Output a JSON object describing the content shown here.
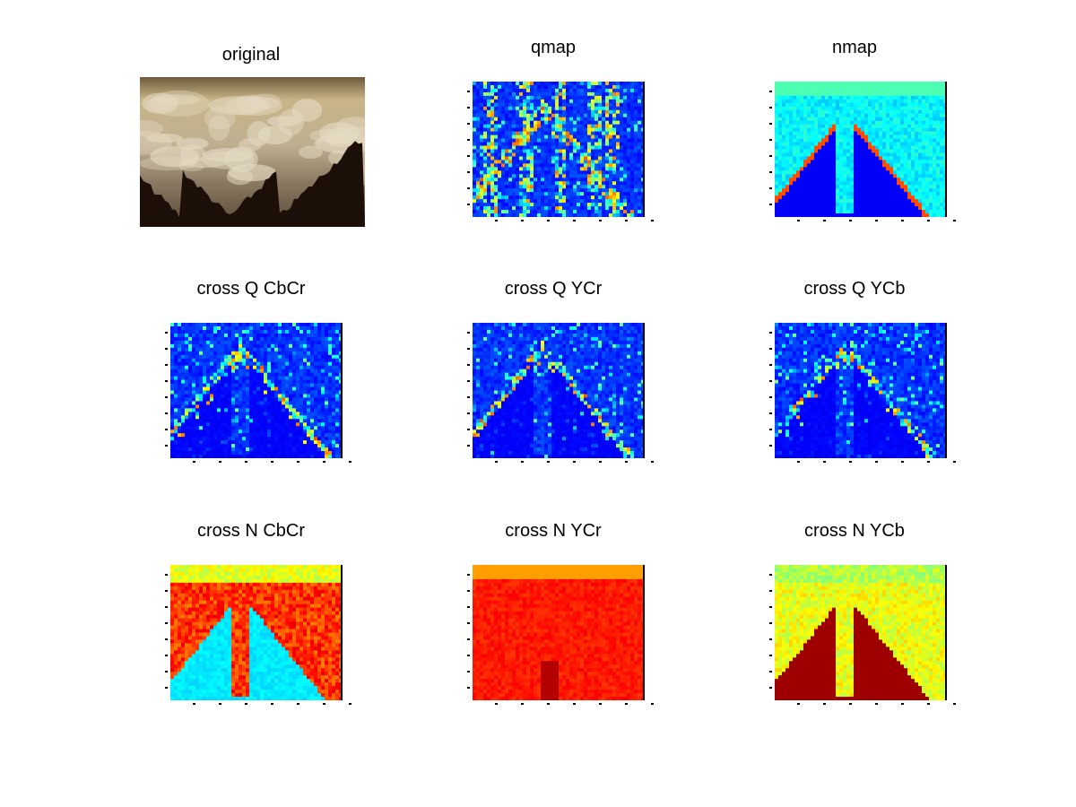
{
  "figure": {
    "panels": [
      {
        "title": "original",
        "kind": "photo"
      },
      {
        "title": "qmap",
        "kind": "sparse-jet"
      },
      {
        "title": "nmap",
        "kind": "smooth-jet-blue"
      },
      {
        "title": "cross Q CbCr",
        "kind": "sparse-jet"
      },
      {
        "title": "cross Q YCr",
        "kind": "sparse-jet"
      },
      {
        "title": "cross Q YCb",
        "kind": "sparse-jet"
      },
      {
        "title": "cross N CbCr",
        "kind": "smooth-jet-red-top"
      },
      {
        "title": "cross N YCr",
        "kind": "smooth-red"
      },
      {
        "title": "cross N YCb",
        "kind": "smooth-jet-red-bottom"
      }
    ],
    "colormap": "jet",
    "colors": {
      "jet_dark_blue": "#00008f",
      "jet_blue": "#0000ff",
      "jet_cyan": "#00ffff",
      "jet_yellow": "#ffff00",
      "jet_red": "#ff0000",
      "jet_dark_red": "#800000"
    }
  }
}
